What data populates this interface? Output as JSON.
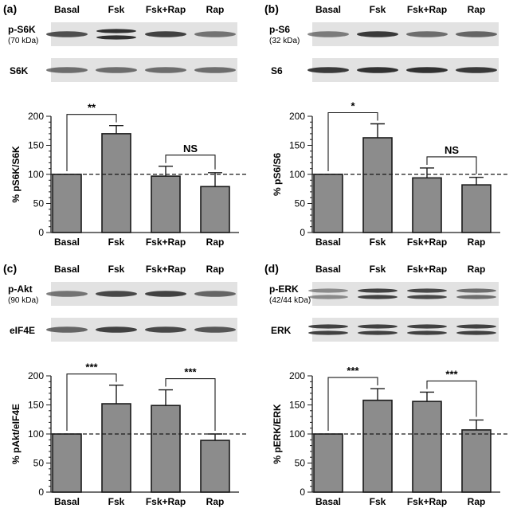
{
  "chart_data": [
    {
      "panel": "(a)",
      "type": "bar",
      "lanes": [
        "Basal",
        "Fsk",
        "Fsk+Rap",
        "Rap"
      ],
      "blot_rows": [
        {
          "label": "p-S6K",
          "sublabel": "(70 kDa)",
          "intensity": [
            0.75,
            0.95,
            0.85,
            0.5
          ],
          "double_band": [
            false,
            true,
            false,
            false
          ]
        },
        {
          "label": "S6K",
          "sublabel": "",
          "intensity": [
            0.55,
            0.55,
            0.55,
            0.55
          ],
          "double_band": [
            false,
            false,
            false,
            false
          ]
        }
      ],
      "categories": [
        "Basal",
        "Fsk",
        "Fsk+Rap",
        "Rap"
      ],
      "values": [
        100,
        170,
        97,
        79
      ],
      "errors": [
        0,
        14,
        17,
        24
      ],
      "ylabel": "% pS6K/S6K",
      "ylim": [
        0,
        200
      ],
      "yticks": [
        "0",
        "50",
        "100",
        "150",
        "200"
      ],
      "reference_line": 100,
      "comparisons": [
        {
          "from": 0,
          "to": 1,
          "label": "**"
        },
        {
          "from": 2,
          "to": 3,
          "label": "NS"
        }
      ]
    },
    {
      "panel": "(b)",
      "type": "bar",
      "lanes": [
        "Basal",
        "Fsk",
        "Fsk+Rap",
        "Rap"
      ],
      "blot_rows": [
        {
          "label": "p-S6",
          "sublabel": "(32 kDa)",
          "intensity": [
            0.45,
            0.9,
            0.55,
            0.6
          ],
          "double_band": [
            false,
            false,
            false,
            false
          ]
        },
        {
          "label": "S6",
          "sublabel": "",
          "intensity": [
            0.9,
            0.95,
            0.95,
            0.9
          ],
          "double_band": [
            false,
            false,
            false,
            false
          ]
        }
      ],
      "categories": [
        "Basal",
        "Fsk",
        "Fsk+Rap",
        "Rap"
      ],
      "values": [
        100,
        163,
        94,
        82
      ],
      "errors": [
        0,
        24,
        17,
        13
      ],
      "ylabel": "% pS6/S6",
      "ylim": [
        0,
        200
      ],
      "yticks": [
        "0",
        "50",
        "100",
        "150",
        "200"
      ],
      "reference_line": 100,
      "comparisons": [
        {
          "from": 0,
          "to": 1,
          "label": "*"
        },
        {
          "from": 2,
          "to": 3,
          "label": "NS"
        }
      ]
    },
    {
      "panel": "(c)",
      "type": "bar",
      "lanes": [
        "Basal",
        "Fsk",
        "Fsk+Rap",
        "Rap"
      ],
      "blot_rows": [
        {
          "label": "p-Akt",
          "sublabel": "(90 kDa)",
          "intensity": [
            0.5,
            0.8,
            0.85,
            0.6
          ],
          "double_band": [
            false,
            false,
            false,
            false
          ]
        },
        {
          "label": "eIF4E",
          "sublabel": "",
          "intensity": [
            0.6,
            0.85,
            0.8,
            0.7
          ],
          "double_band": [
            false,
            false,
            false,
            false
          ]
        }
      ],
      "categories": [
        "Basal",
        "Fsk",
        "Fsk+Rap",
        "Rap"
      ],
      "values": [
        100,
        152,
        149,
        89
      ],
      "errors": [
        0,
        32,
        27,
        11
      ],
      "ylabel": "% pAkt/eIF4E",
      "ylim": [
        0,
        200
      ],
      "yticks": [
        "0",
        "50",
        "100",
        "150",
        "200"
      ],
      "reference_line": 100,
      "comparisons": [
        {
          "from": 0,
          "to": 1,
          "label": "***"
        },
        {
          "from": 2,
          "to": 3,
          "label": "***"
        }
      ]
    },
    {
      "panel": "(d)",
      "type": "bar",
      "lanes": [
        "Basal",
        "Fsk",
        "Fsk+Rap",
        "Rap"
      ],
      "blot_rows": [
        {
          "label": "p-ERK",
          "sublabel": "(42/44 kDa)",
          "intensity": [
            0.35,
            0.85,
            0.8,
            0.55
          ],
          "double_band": [
            true,
            true,
            true,
            true
          ]
        },
        {
          "label": "ERK",
          "sublabel": "",
          "intensity": [
            0.85,
            0.85,
            0.85,
            0.85
          ],
          "double_band": [
            true,
            true,
            true,
            true
          ]
        }
      ],
      "categories": [
        "Basal",
        "Fsk",
        "Fsk+Rap",
        "Rap"
      ],
      "values": [
        100,
        158,
        156,
        107
      ],
      "errors": [
        0,
        20,
        16,
        17
      ],
      "ylabel": "% pERK/ERK",
      "ylim": [
        0,
        200
      ],
      "yticks": [
        "0",
        "50",
        "100",
        "150",
        "200"
      ],
      "reference_line": 100,
      "comparisons": [
        {
          "from": 0,
          "to": 1,
          "label": "***"
        },
        {
          "from": 2,
          "to": 3,
          "label": "***"
        }
      ]
    }
  ],
  "colors": {
    "bar_fill": "#8c8c8c",
    "bar_stroke": "#1a1a1a",
    "blot_bg": "#e2e2e2",
    "band": "#2a2a2a"
  }
}
